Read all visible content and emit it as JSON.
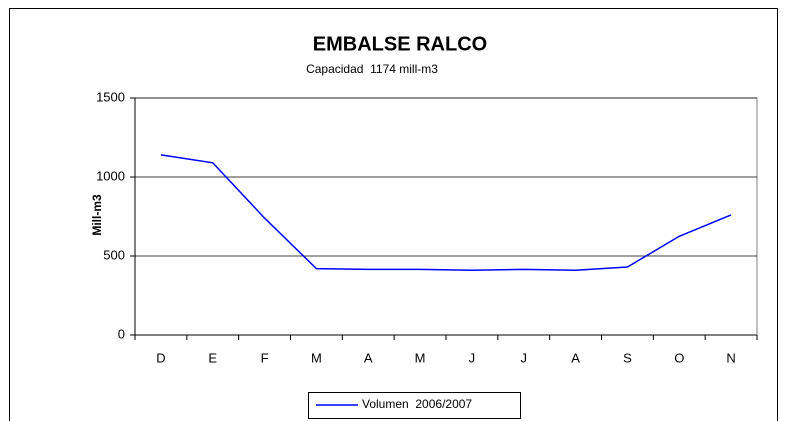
{
  "chart_data": {
    "type": "line",
    "title": "EMBALSE RALCO",
    "subtitle": "Capacidad  1174 mill-m3",
    "y_label": "Mill-m3",
    "categories": [
      "D",
      "E",
      "F",
      "M",
      "A",
      "M",
      "J",
      "J",
      "A",
      "S",
      "O",
      "N"
    ],
    "series": [
      {
        "name": "Volumen  2006/2007",
        "color": "#0000ff",
        "values": [
          1140,
          1090,
          740,
          420,
          415,
          415,
          410,
          415,
          410,
          430,
          625,
          760
        ]
      }
    ],
    "ylim": [
      0,
      1500
    ],
    "yticks": [
      0,
      500,
      1000,
      1500
    ],
    "grid": true,
    "legend": "bottom"
  }
}
